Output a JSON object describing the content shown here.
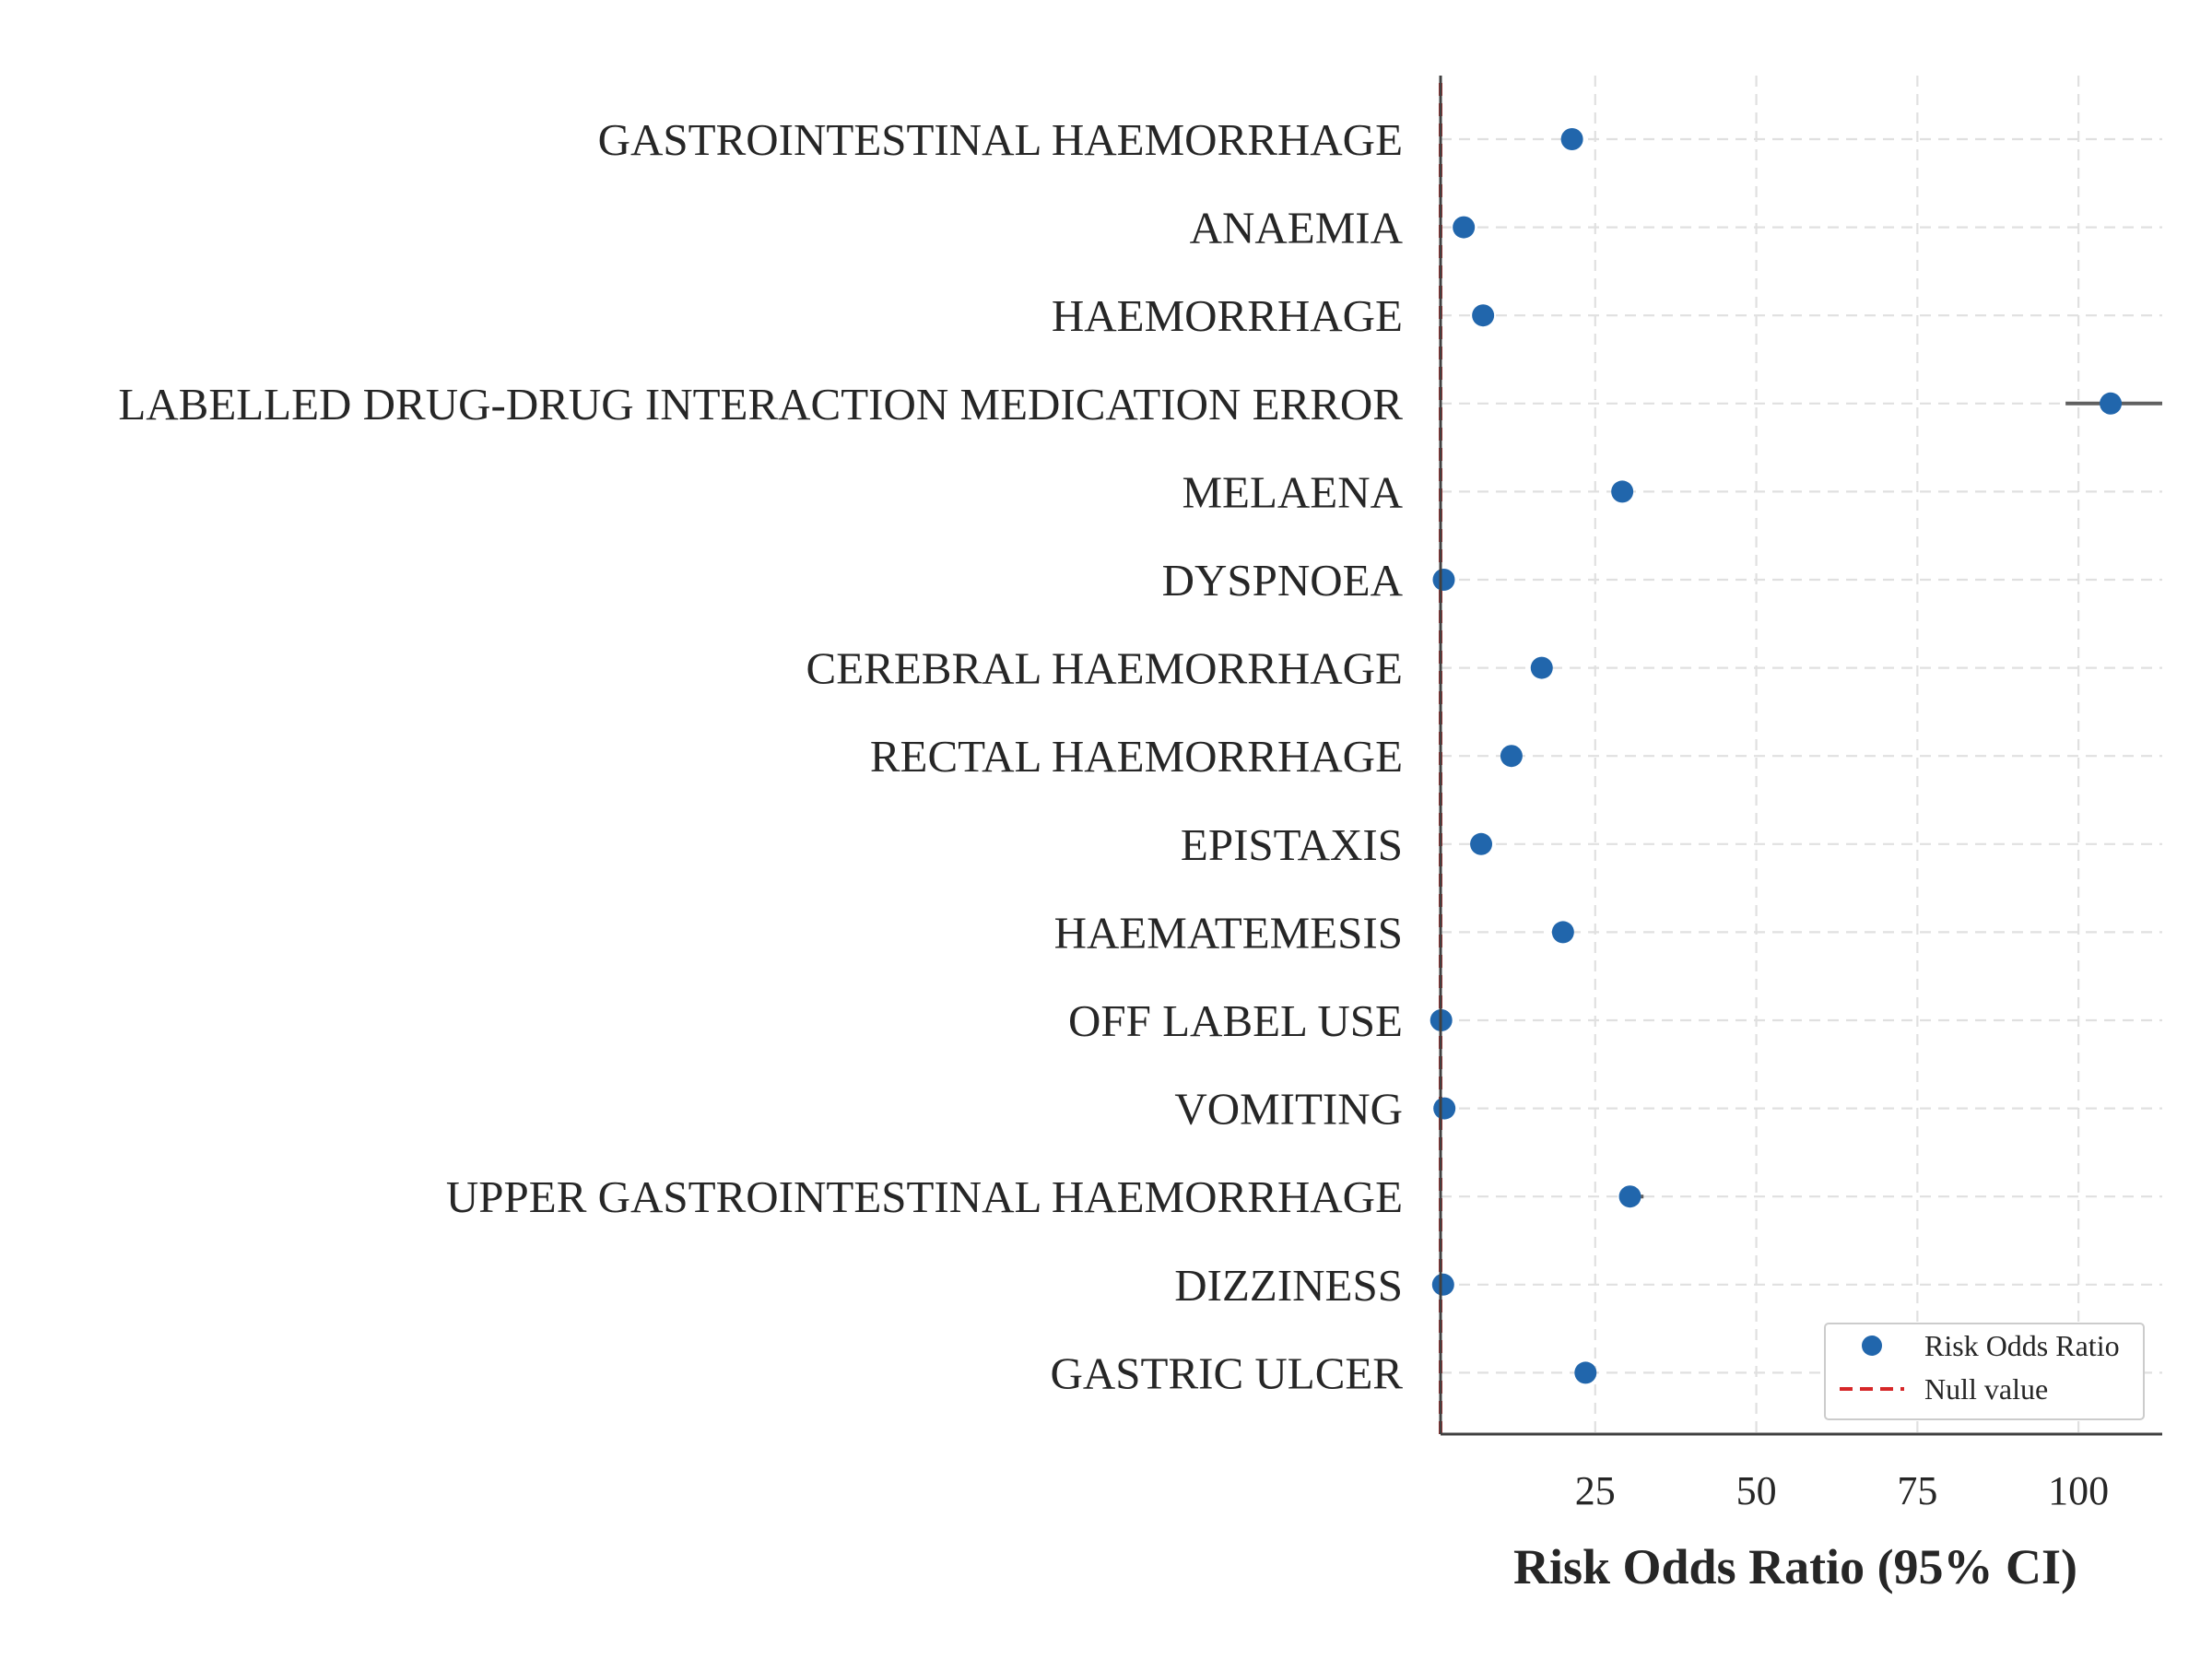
{
  "chart_data": {
    "type": "forest",
    "xlabel": "Risk Odds Ratio (95% CI)",
    "xlim": [
      1,
      113
    ],
    "xticks": [
      25,
      50,
      75,
      100
    ],
    "null_value": 1,
    "grid": true,
    "legend_position": "lower-right",
    "legend": [
      {
        "label": "Risk Odds Ratio",
        "kind": "marker"
      },
      {
        "label": "Null value",
        "kind": "dashed-line"
      }
    ],
    "colors": {
      "point": "#2166ac",
      "null_line": "#d62728",
      "ci": "#606060",
      "axis": "#404040"
    },
    "categories": [
      "GASTROINTESTINAL HAEMORRHAGE",
      "ANAEMIA",
      "HAEMORRHAGE",
      "LABELLED DRUG-DRUG INTERACTION MEDICATION ERROR",
      "MELAENA",
      "DYSPNOEA",
      "CEREBRAL HAEMORRHAGE",
      "RECTAL HAEMORRHAGE",
      "EPISTAXIS",
      "HAEMATEMESIS",
      "OFF LABEL USE",
      "VOMITING",
      "UPPER GASTROINTESTINAL HAEMORRHAGE",
      "DIZZINESS",
      "GASTRIC ULCER"
    ],
    "values": [
      21.4,
      4.6,
      7.6,
      105.0,
      29.2,
      1.5,
      16.7,
      12.0,
      7.3,
      20.0,
      1.1,
      1.6,
      30.4,
      1.4,
      23.5
    ],
    "ci_lower": [
      20.9,
      4.4,
      7.3,
      98.0,
      28.6,
      1.3,
      16.3,
      11.7,
      7.0,
      19.6,
      1.0,
      1.4,
      29.5,
      1.2,
      23.0
    ],
    "ci_upper": [
      21.9,
      4.8,
      7.9,
      113.0,
      29.8,
      1.7,
      17.1,
      12.3,
      7.6,
      20.4,
      1.2,
      1.8,
      32.5,
      1.6,
      24.0
    ]
  }
}
